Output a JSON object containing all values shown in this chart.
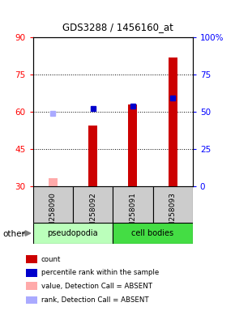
{
  "title": "GDS3288 / 1456160_at",
  "samples": [
    "GSM258090",
    "GSM258092",
    "GSM258091",
    "GSM258093"
  ],
  "groups": [
    "pseudopodia",
    "pseudopodia",
    "cell bodies",
    "cell bodies"
  ],
  "bar_colors_present": "#cc0000",
  "bar_colors_absent": "#ffaaaa",
  "rank_colors_present": "#0000cc",
  "rank_colors_absent": "#aaaaff",
  "count_values": [
    33.5,
    54.5,
    63.0,
    82.0
  ],
  "count_absent": [
    true,
    false,
    false,
    false
  ],
  "rank_values": [
    59.5,
    61.5,
    62.5,
    65.5
  ],
  "rank_absent": [
    true,
    false,
    false,
    false
  ],
  "ylim_left": [
    30,
    90
  ],
  "yticks_left": [
    30,
    45,
    60,
    75,
    90
  ],
  "yticks_right": [
    0,
    25,
    50,
    75,
    100
  ],
  "ytick_labels_right": [
    "0",
    "25",
    "50",
    "75",
    "100%"
  ],
  "bar_width": 0.22,
  "baseline": 30,
  "legend_items": [
    {
      "color": "#cc0000",
      "label": "count"
    },
    {
      "color": "#0000cc",
      "label": "percentile rank within the sample"
    },
    {
      "color": "#ffaaaa",
      "label": "value, Detection Call = ABSENT"
    },
    {
      "color": "#aaaaff",
      "label": "rank, Detection Call = ABSENT"
    }
  ]
}
